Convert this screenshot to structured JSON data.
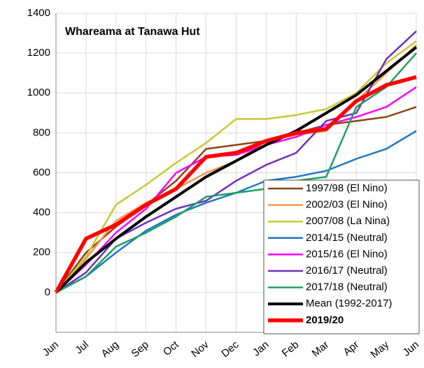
{
  "chart_data": {
    "type": "line",
    "title": "Whareama at Tanawa Hut",
    "categories": [
      "Jun",
      "Jul",
      "Aug",
      "Sep",
      "Oct",
      "Nov",
      "Dec",
      "Jan",
      "Feb",
      "Mar",
      "Apr",
      "May",
      "Jun"
    ],
    "ylim": [
      -200,
      1400
    ],
    "yticks": [
      0,
      200,
      400,
      600,
      800,
      1000,
      1200,
      1400
    ],
    "grid": true,
    "legend": "lower right",
    "series": [
      {
        "name": "1997/98 (El Nino)",
        "color": "#8b4513",
        "line_width": 2.5,
        "values": [
          0,
          200,
          330,
          440,
          560,
          720,
          740,
          760,
          800,
          840,
          860,
          880,
          930
        ]
      },
      {
        "name": "2002/03 (El Nino)",
        "color": "#f79646",
        "line_width": 2.5,
        "values": [
          0,
          170,
          360,
          450,
          520,
          600,
          660,
          760,
          790,
          810,
          960,
          1100,
          1240
        ]
      },
      {
        "name": "2007/08 (La Nina)",
        "color": "#c8c832",
        "line_width": 2.5,
        "values": [
          0,
          180,
          440,
          540,
          650,
          750,
          870,
          870,
          890,
          920,
          1000,
          1150,
          1260
        ]
      },
      {
        "name": "2014/15 (Neutral)",
        "color": "#1f77c4",
        "line_width": 2.5,
        "values": [
          0,
          80,
          200,
          310,
          390,
          450,
          500,
          560,
          580,
          610,
          670,
          720,
          810
        ]
      },
      {
        "name": "2015/16 (El Nino)",
        "color": "#ff00ff",
        "line_width": 2.5,
        "values": [
          0,
          140,
          300,
          420,
          600,
          680,
          690,
          740,
          780,
          840,
          880,
          930,
          1030
        ]
      },
      {
        "name": "2016/17 (Neutral)",
        "color": "#7030c0",
        "line_width": 2.5,
        "values": [
          0,
          100,
          270,
          350,
          420,
          460,
          560,
          640,
          700,
          860,
          900,
          1170,
          1310
        ]
      },
      {
        "name": "2017/18 (Neutral)",
        "color": "#20a060",
        "line_width": 2.5,
        "values": [
          0,
          80,
          230,
          300,
          380,
          480,
          500,
          520,
          560,
          580,
          930,
          1030,
          1200
        ]
      },
      {
        "name": "Mean (1992-2017)",
        "color": "#000000",
        "line_width": 4,
        "values": [
          0,
          150,
          270,
          380,
          480,
          580,
          660,
          740,
          810,
          900,
          990,
          1110,
          1230
        ]
      },
      {
        "name": "2019/20",
        "color": "#ff0000",
        "line_width": 5.5,
        "legend_bold": true,
        "values": [
          0,
          270,
          340,
          440,
          520,
          680,
          700,
          760,
          800,
          820,
          960,
          1040,
          1080
        ]
      }
    ]
  }
}
